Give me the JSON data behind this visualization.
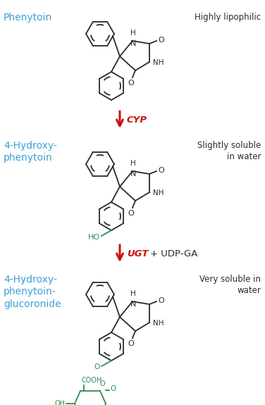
{
  "bg_color": "#ffffff",
  "blue_color": "#3b9fd8",
  "dark_color": "#2a2a2a",
  "red_color": "#cc1111",
  "green_color": "#2e8b57",
  "labels": {
    "phenytoin": "Phenytoin",
    "hydroxy": "4-Hydroxy-\nphenytoin",
    "glucuronide": "4-Hydroxy-\nphenytoin-\nglucoronide",
    "lipophilic": "Highly lipophilic",
    "slightly": "Slightly soluble\nin water",
    "very_soluble": "Very soluble in\nwater",
    "cyp": "CYP",
    "ugt": "UGT",
    "udpga": "+ UDP-GA"
  }
}
